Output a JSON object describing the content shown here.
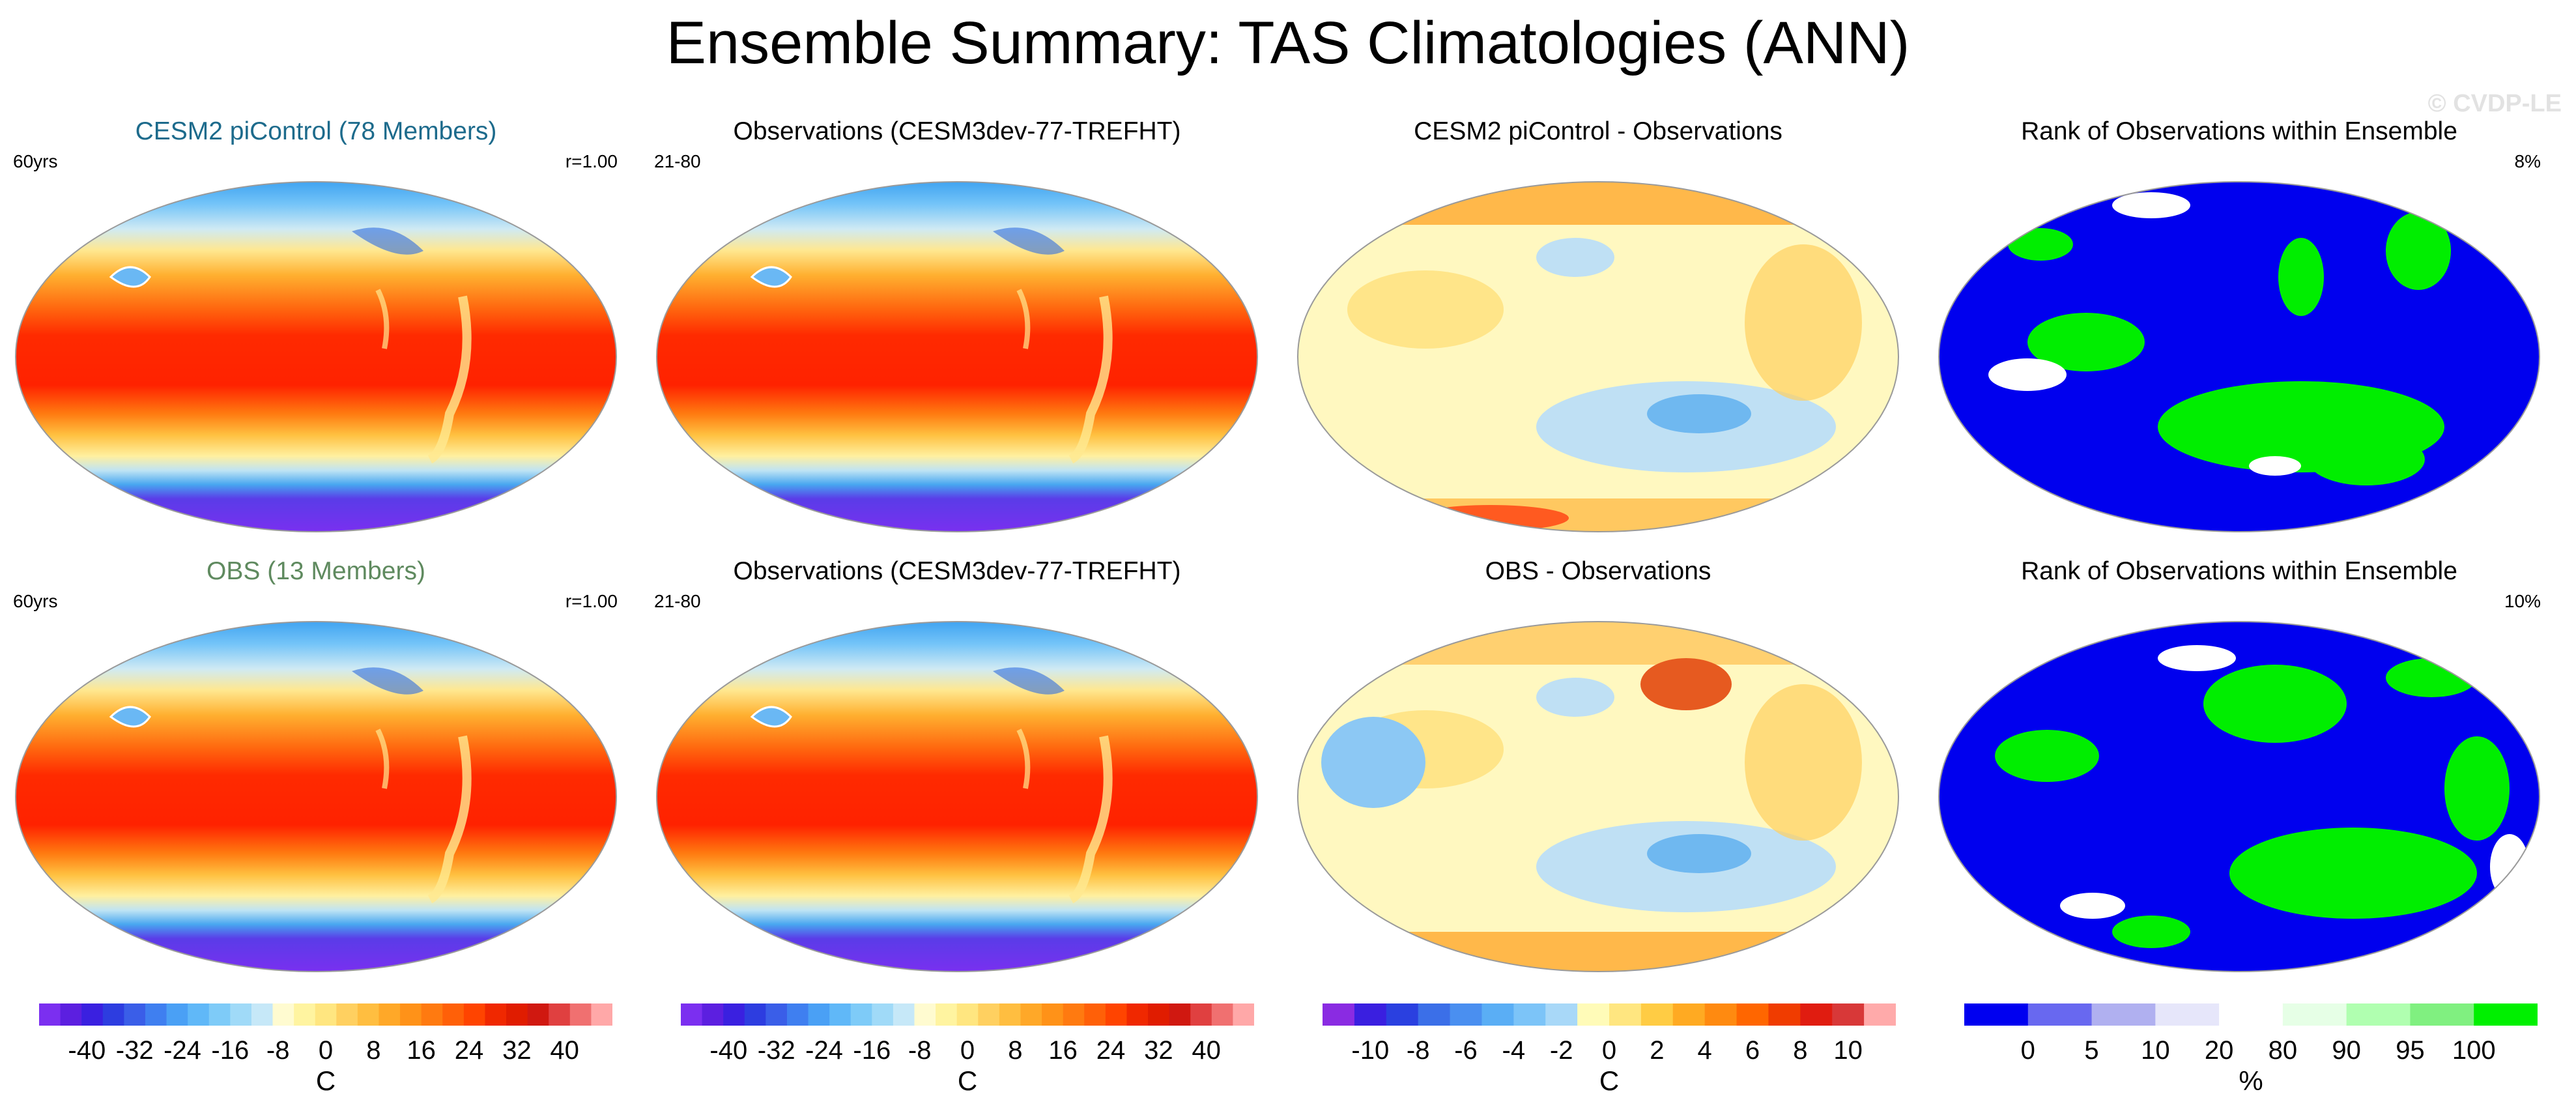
{
  "title": "Ensemble Summary: TAS Climatologies (ANN)",
  "watermark": "© CVDP-LE",
  "panels": [
    {
      "title": "CESM2 piControl (78 Members)",
      "title_color": "#1d6b8c",
      "left_label": "60yrs",
      "right_label": "r=1.00",
      "scheme": "temp"
    },
    {
      "title": "Observations (CESM3dev-77-TREFHT)",
      "title_color": "#000000",
      "left_label": "21-80",
      "right_label": "",
      "scheme": "temp"
    },
    {
      "title": "CESM2 piControl - Observations",
      "title_color": "#000000",
      "left_label": "",
      "right_label": "",
      "scheme": "diff1"
    },
    {
      "title": "Rank of Observations within Ensemble",
      "title_color": "#000000",
      "left_label": "",
      "right_label": "8%",
      "scheme": "rank1"
    },
    {
      "title": "OBS (13 Members)",
      "title_color": "#5f8a5f",
      "left_label": "60yrs",
      "right_label": "r=1.00",
      "scheme": "temp"
    },
    {
      "title": "Observations (CESM3dev-77-TREFHT)",
      "title_color": "#000000",
      "left_label": "21-80",
      "right_label": "",
      "scheme": "temp"
    },
    {
      "title": "OBS - Observations",
      "title_color": "#000000",
      "left_label": "",
      "right_label": "",
      "scheme": "diff2"
    },
    {
      "title": "Rank of Observations within Ensemble",
      "title_color": "#000000",
      "left_label": "",
      "right_label": "10%",
      "scheme": "rank2"
    }
  ],
  "colorbars": [
    {
      "unit": "C",
      "labels": [
        "-40",
        "-32",
        "-24",
        "-16",
        "-8",
        "0",
        "8",
        "16",
        "24",
        "32",
        "40"
      ],
      "colors": [
        "#7b2ff0",
        "#5c1fe0",
        "#3a20e0",
        "#2d3de0",
        "#3a5ee8",
        "#3f7ff0",
        "#4aa0f5",
        "#60b8f8",
        "#7ecbf8",
        "#a0daf8",
        "#c6e8f8",
        "#fffbd0",
        "#fff4a0",
        "#ffe680",
        "#ffd060",
        "#ffbe40",
        "#ffa828",
        "#ff9218",
        "#ff7a10",
        "#ff6008",
        "#ff4400",
        "#f02800",
        "#e01c00",
        "#d01810",
        "#e04040",
        "#f07070",
        "#ffa8a8"
      ]
    },
    {
      "unit": "C",
      "labels": [
        "-40",
        "-32",
        "-24",
        "-16",
        "-8",
        "0",
        "8",
        "16",
        "24",
        "32",
        "40"
      ],
      "colors": [
        "#7b2ff0",
        "#5c1fe0",
        "#3a20e0",
        "#2d3de0",
        "#3a5ee8",
        "#3f7ff0",
        "#4aa0f5",
        "#60b8f8",
        "#7ecbf8",
        "#a0daf8",
        "#c6e8f8",
        "#fffbd0",
        "#fff4a0",
        "#ffe680",
        "#ffd060",
        "#ffbe40",
        "#ffa828",
        "#ff9218",
        "#ff7a10",
        "#ff6008",
        "#ff4400",
        "#f02800",
        "#e01c00",
        "#d01810",
        "#e04040",
        "#f07070",
        "#ffa8a8"
      ]
    },
    {
      "unit": "C",
      "labels": [
        "-10",
        "-8",
        "-6",
        "-4",
        "-2",
        "0",
        "2",
        "4",
        "6",
        "8",
        "10"
      ],
      "colors": [
        "#8a2be2",
        "#3a1fe0",
        "#2a40e0",
        "#3b6fe8",
        "#4a8ff0",
        "#5aaef5",
        "#7cc4f8",
        "#a8d8f8",
        "#fffbb8",
        "#ffe680",
        "#ffcc44",
        "#ffaa22",
        "#ff8a10",
        "#ff6600",
        "#f03c00",
        "#e01c10",
        "#d83838",
        "#ffaaaa"
      ]
    },
    {
      "unit": "%",
      "labels": [
        "0",
        "5",
        "10",
        "20",
        "80",
        "90",
        "95",
        "100"
      ],
      "colors": [
        "#0000f0",
        "#6868f0",
        "#b0b0f0",
        "#e6e6fa",
        "#ffffff",
        "#e6ffe6",
        "#b0ffb0",
        "#80f080",
        "#00f000"
      ]
    }
  ]
}
